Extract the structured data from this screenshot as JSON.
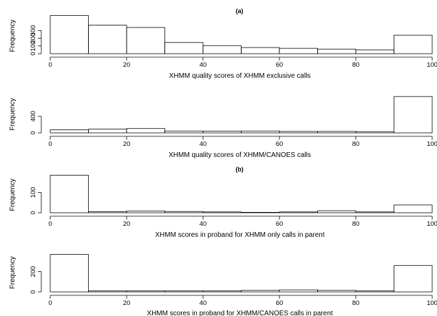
{
  "panel_labels": [
    "(a)",
    "(b)"
  ],
  "chart_data": [
    {
      "type": "bar",
      "title": "",
      "xlabel": "XHMM quality scores of XHMM exclusive calls",
      "ylabel": "Frequency",
      "xlim": [
        0,
        100
      ],
      "ylim": [
        0,
        500
      ],
      "x_ticks": [
        "0",
        "20",
        "40",
        "60",
        "80",
        "100"
      ],
      "y_ticks": [
        "0",
        "100",
        "200",
        "300"
      ],
      "bin_edges": [
        0,
        10,
        20,
        30,
        40,
        50,
        60,
        70,
        80,
        90,
        100
      ],
      "values": [
        495,
        370,
        340,
        145,
        105,
        80,
        70,
        60,
        50,
        240
      ]
    },
    {
      "type": "bar",
      "title": "",
      "xlabel": "XHMM quality scores of XHMM/CANOES calls",
      "ylabel": "Frequency",
      "xlim": [
        0,
        100
      ],
      "ylim": [
        0,
        900
      ],
      "x_ticks": [
        "0",
        "20",
        "40",
        "60",
        "80",
        "100"
      ],
      "y_ticks": [
        "0",
        "400"
      ],
      "bin_edges": [
        0,
        10,
        20,
        30,
        40,
        50,
        60,
        70,
        80,
        90,
        100
      ],
      "values": [
        75,
        90,
        105,
        45,
        40,
        45,
        35,
        35,
        30,
        880
      ]
    },
    {
      "type": "bar",
      "title": "",
      "xlabel": "XHMM scores in proband for XHMM only calls in parent",
      "ylabel": "Frequency",
      "xlim": [
        0,
        100
      ],
      "ylim": [
        0,
        190
      ],
      "x_ticks": [
        "0",
        "20",
        "40",
        "60",
        "80",
        "100"
      ],
      "y_ticks": [
        "0",
        "100"
      ],
      "bin_edges": [
        0,
        10,
        20,
        30,
        40,
        50,
        60,
        70,
        80,
        90,
        100
      ],
      "values": [
        185,
        5,
        8,
        6,
        4,
        2,
        4,
        10,
        4,
        38
      ]
    },
    {
      "type": "bar",
      "title": "",
      "xlabel": "XHMM scores in proband for XHMM/CANOES calls in parent",
      "ylabel": "Frequency",
      "xlim": [
        0,
        100
      ],
      "ylim": [
        0,
        380
      ],
      "x_ticks": [
        "0",
        "20",
        "40",
        "60",
        "80",
        "100"
      ],
      "y_ticks": [
        "0",
        "200"
      ],
      "bin_edges": [
        0,
        10,
        20,
        30,
        40,
        50,
        60,
        70,
        80,
        90,
        100
      ],
      "values": [
        370,
        10,
        10,
        10,
        10,
        15,
        20,
        15,
        10,
        260
      ]
    }
  ]
}
